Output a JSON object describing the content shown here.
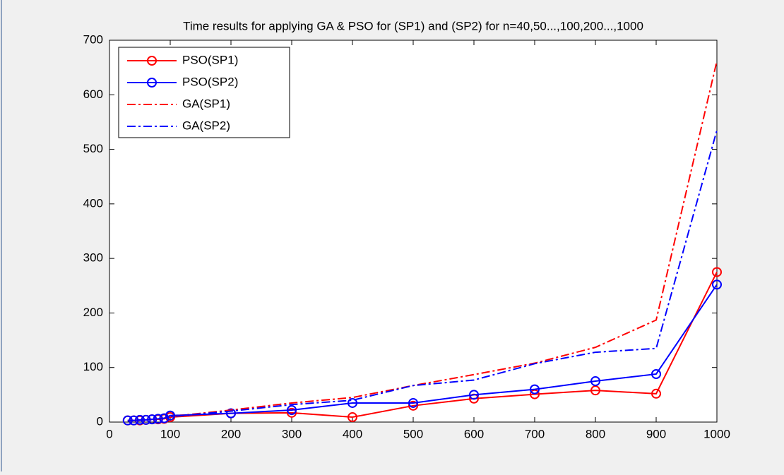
{
  "chart_data": {
    "type": "line",
    "title": "Time results for applying GA & PSO for (SP1) and (SP2) for n=40,50...,100,200...,1000",
    "x": [
      30,
      40,
      50,
      60,
      70,
      80,
      90,
      100,
      200,
      300,
      400,
      500,
      600,
      700,
      800,
      900,
      1000
    ],
    "series": [
      {
        "name": "PSO(SP1)",
        "color": "#ff0000",
        "line_style": "solid",
        "marker": "circle",
        "values": [
          3,
          3,
          3,
          4,
          5,
          5,
          6,
          9,
          16,
          17,
          9,
          30,
          43,
          51,
          58,
          52,
          275
        ]
      },
      {
        "name": "PSO(SP2)",
        "color": "#0000ff",
        "line_style": "solid",
        "marker": "circle",
        "values": [
          3,
          3,
          4,
          4,
          5,
          6,
          7,
          12,
          16,
          22,
          35,
          35,
          50,
          60,
          75,
          88,
          252
        ]
      },
      {
        "name": "GA(SP1)",
        "color": "#ff0000",
        "line_style": "dashdot",
        "marker": "none",
        "values": [
          2,
          3,
          3,
          4,
          5,
          6,
          7,
          10,
          22,
          35,
          45,
          67,
          87,
          108,
          137,
          187,
          662
        ]
      },
      {
        "name": "GA(SP2)",
        "color": "#0000ff",
        "line_style": "dashdot",
        "marker": "none",
        "values": [
          2,
          3,
          3,
          4,
          5,
          6,
          7,
          10,
          20,
          32,
          40,
          67,
          77,
          107,
          128,
          135,
          535
        ]
      }
    ],
    "xlim": [
      0,
      1000
    ],
    "xticks": [
      0,
      100,
      200,
      300,
      400,
      500,
      600,
      700,
      800,
      900,
      1000
    ],
    "ylim": [
      0,
      700
    ],
    "yticks": [
      0,
      100,
      200,
      300,
      400,
      500,
      600,
      700
    ],
    "grid": false,
    "legend": "top-left"
  }
}
